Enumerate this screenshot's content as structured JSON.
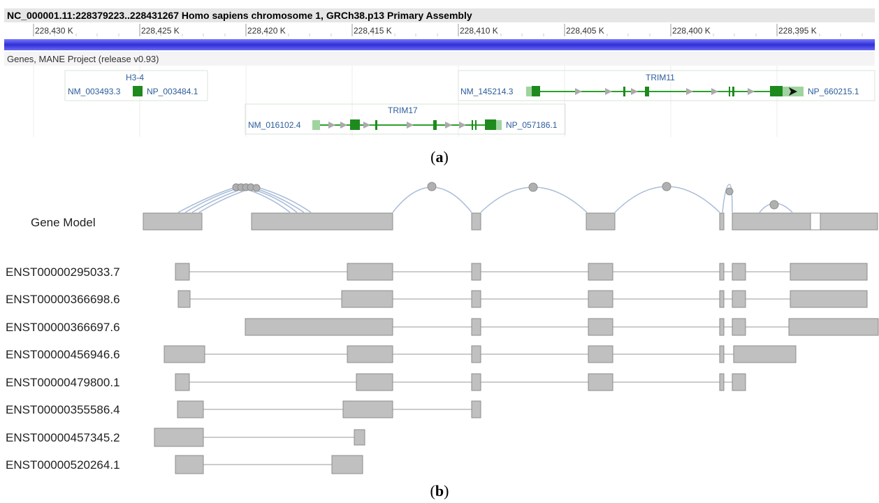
{
  "panel_a": {
    "header": "NC_000001.11:228379223..228431267 Homo sapiens chromosome 1, GRCh38.p13 Primary Assembly",
    "ruler_ticks": [
      "228,430 K",
      "228,425 K",
      "228,420 K",
      "228,415 K",
      "228,410 K",
      "228,405 K",
      "228,400 K",
      "228,395 K"
    ],
    "track_title": "Genes, MANE Project (release v0.93)",
    "genes": [
      {
        "name": "H3-4",
        "transcript": "NM_003493.3",
        "protein": "NP_003484.1"
      },
      {
        "name": "TRIM11",
        "transcript": "NM_145214.3",
        "protein": "NP_660215.1"
      },
      {
        "name": "TRIM17",
        "transcript": "NM_016102.4",
        "protein": "NP_057186.1"
      }
    ],
    "caption_letter": "a"
  },
  "panel_b": {
    "gene_model_label": "Gene Model",
    "transcripts": [
      "ENST00000295033.7",
      "ENST00000366698.6",
      "ENST00000366697.6",
      "ENST00000456946.6",
      "ENST00000479800.1",
      "ENST00000355586.4",
      "ENST00000457345.2",
      "ENST00000520264.1"
    ],
    "caption_letter": "b"
  },
  "colors": {
    "axis_bar": "#3a3ad8",
    "exon_dark": "#1e8a1e",
    "utr_light": "#9fd49f",
    "intron_green": "#2aa02a",
    "label_blue": "#2a5d9b",
    "exon_grey": "#c0c0c0",
    "exon_grey_border": "#8c8c8c",
    "junction_arc": "#9ab0d0"
  }
}
